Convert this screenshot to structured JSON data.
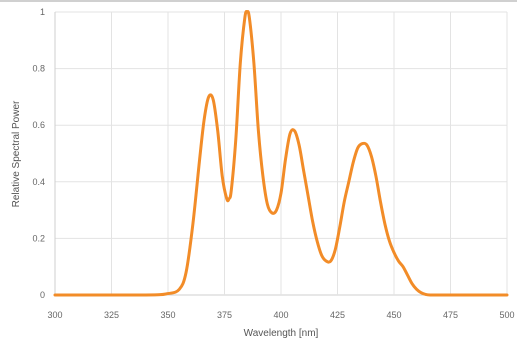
{
  "chart_data": {
    "type": "line",
    "title": "",
    "xlabel": "Wavelength [nm]",
    "ylabel": "Relative Spectral Power",
    "xlim": [
      300,
      500
    ],
    "ylim": [
      0,
      1
    ],
    "x_ticks": [
      "300",
      "325",
      "350",
      "375",
      "400",
      "425",
      "450",
      "475",
      "500"
    ],
    "y_ticks": [
      "0",
      "0.2",
      "0.4",
      "0.6",
      "0.8",
      "1"
    ],
    "grid": true,
    "legend": "none",
    "series": [
      {
        "color": "#F28C28",
        "x": [
          300,
          340,
          350,
          355,
          358,
          361,
          364,
          366,
          368,
          370,
          372,
          374,
          376,
          377,
          378,
          380,
          382,
          384,
          385,
          386,
          388,
          390,
          392,
          394,
          396,
          398,
          400,
          402,
          404,
          406,
          408,
          410,
          412,
          414,
          416,
          418,
          420,
          422,
          424,
          426,
          428,
          430,
          432,
          434,
          436,
          438,
          440,
          442,
          444,
          446,
          448,
          450,
          452,
          454,
          456,
          458,
          460,
          462,
          464,
          466,
          470,
          500
        ],
        "y": [
          0,
          0,
          0.005,
          0.02,
          0.08,
          0.25,
          0.48,
          0.62,
          0.7,
          0.69,
          0.58,
          0.42,
          0.34,
          0.34,
          0.37,
          0.55,
          0.82,
          0.98,
          1.0,
          0.98,
          0.82,
          0.58,
          0.42,
          0.32,
          0.29,
          0.3,
          0.36,
          0.48,
          0.57,
          0.58,
          0.53,
          0.44,
          0.35,
          0.26,
          0.19,
          0.14,
          0.12,
          0.12,
          0.16,
          0.24,
          0.33,
          0.4,
          0.47,
          0.52,
          0.535,
          0.53,
          0.49,
          0.42,
          0.33,
          0.25,
          0.19,
          0.15,
          0.12,
          0.1,
          0.07,
          0.04,
          0.02,
          0.008,
          0.002,
          0,
          0,
          0
        ]
      }
    ]
  }
}
